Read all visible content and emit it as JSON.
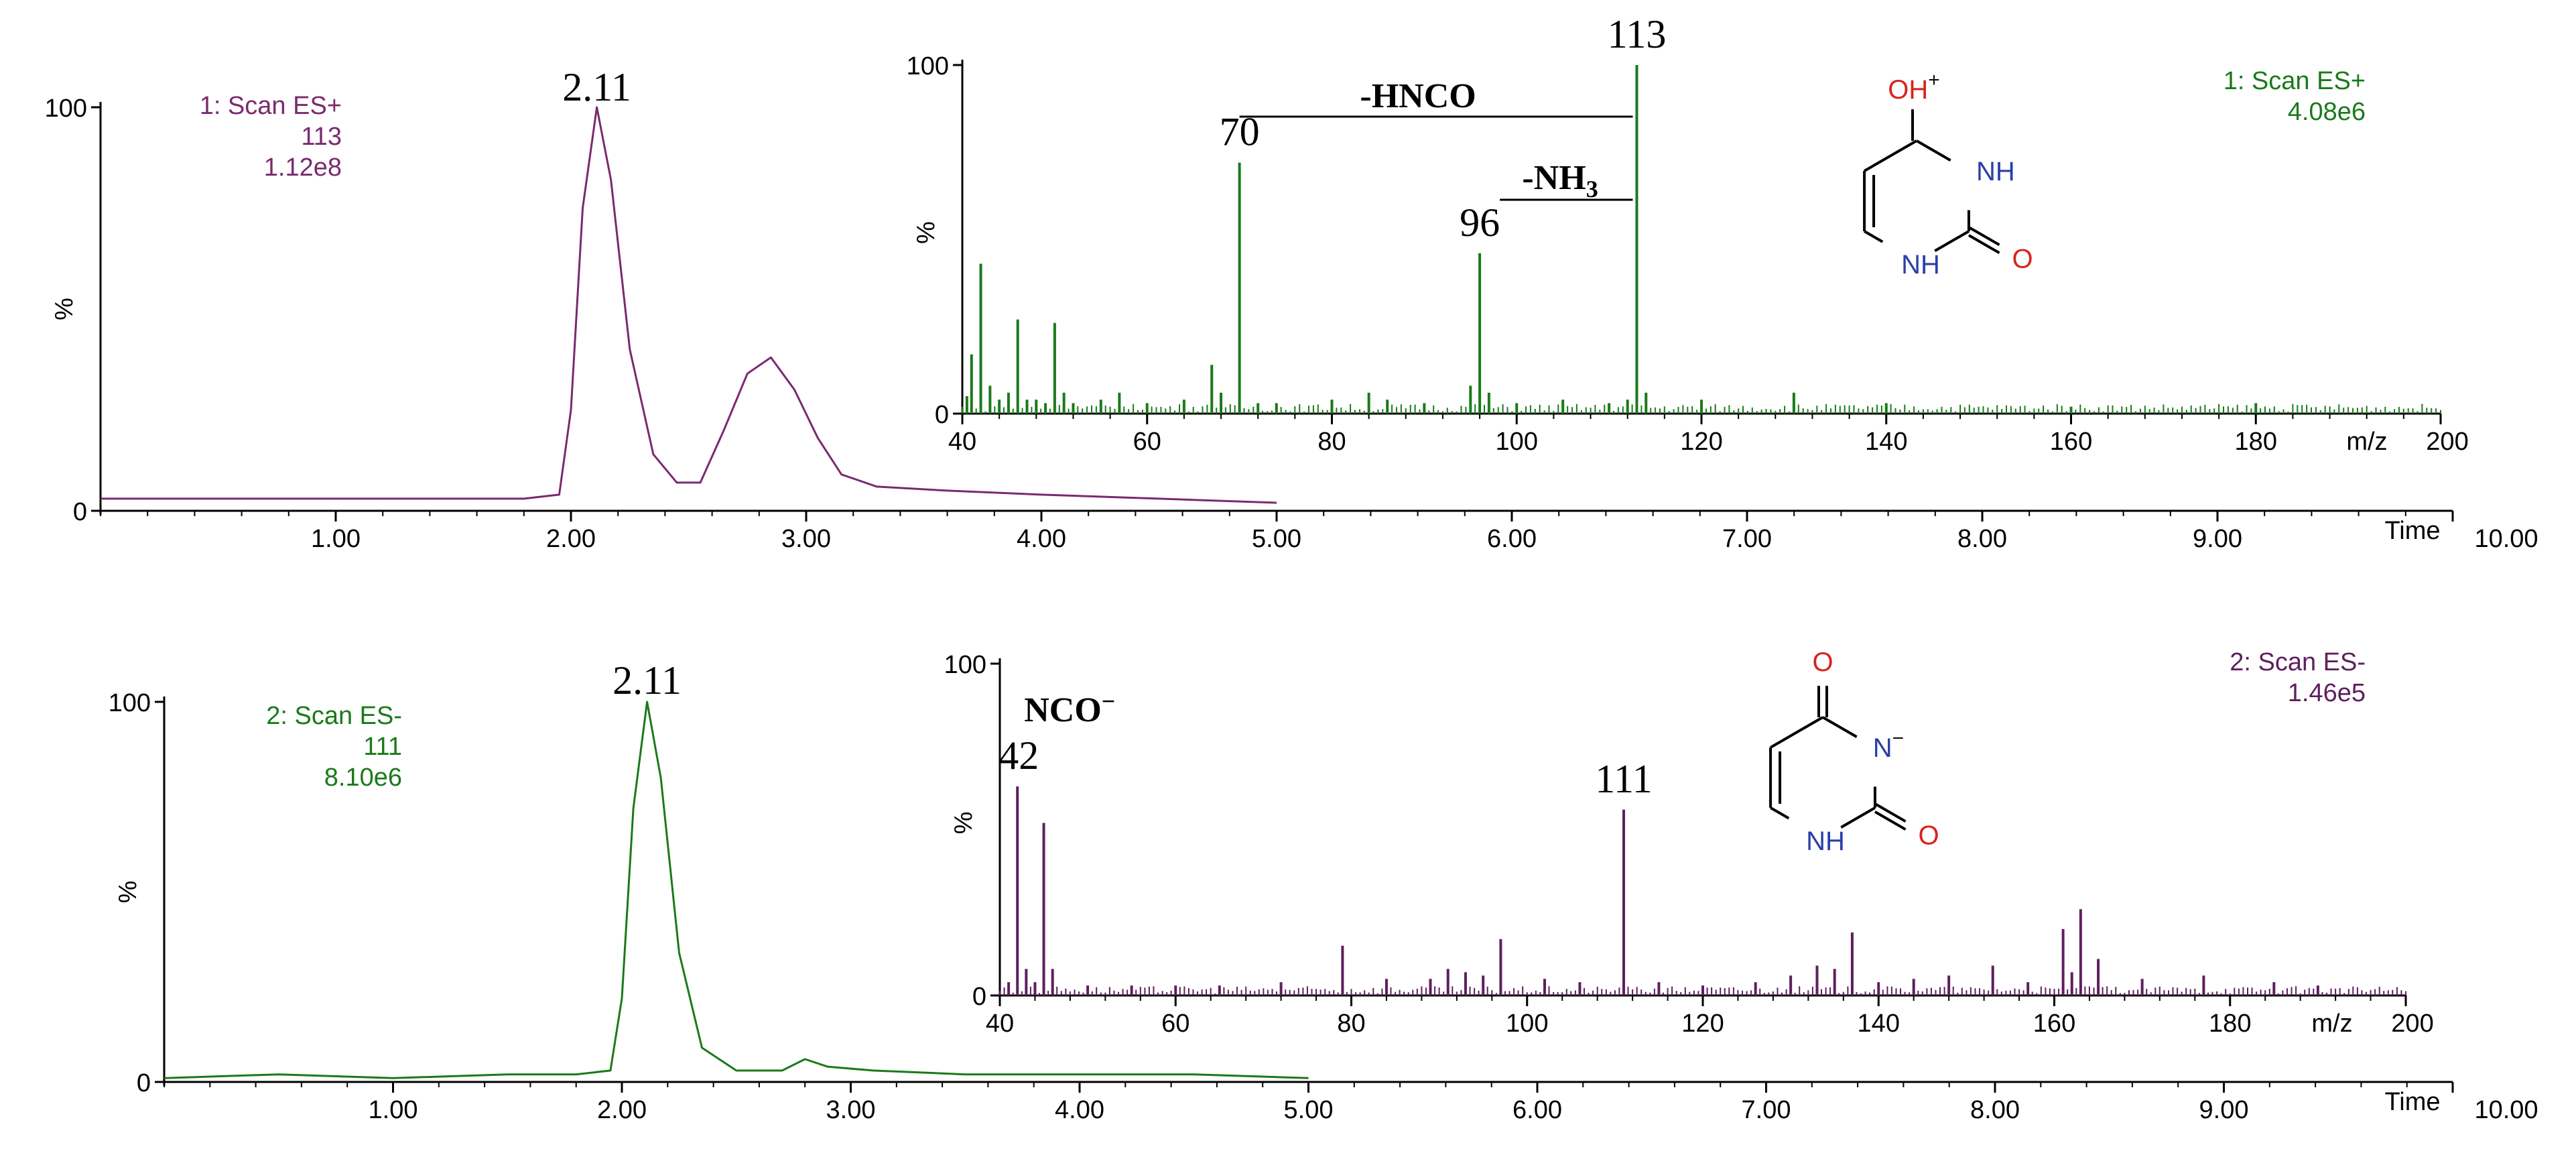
{
  "chart_data": [
    {
      "type": "line",
      "panel": "top chromatogram",
      "xlabel": "Time",
      "ylabel": "%",
      "xlim": [
        0,
        10
      ],
      "ylim": [
        0,
        100
      ],
      "x_ticks": [
        "1.00",
        "2.00",
        "3.00",
        "4.00",
        "5.00",
        "6.00",
        "7.00",
        "8.00",
        "9.00",
        "10.00"
      ],
      "x_tick_values": [
        1,
        2,
        3,
        4,
        5,
        6,
        7,
        8,
        9,
        10
      ],
      "y_ticks": [
        "0",
        "100"
      ],
      "y_tick_values": [
        0,
        100
      ],
      "info_lines": [
        "1: Scan ES+",
        "113",
        "1.12e8"
      ],
      "peak_label": "2.11",
      "peak_label_x": 2.11,
      "color": "#7a2a6e",
      "series": [
        {
          "x": [
            0.0,
            0.5,
            1.0,
            1.5,
            1.8,
            1.95,
            2.0,
            2.05,
            2.11,
            2.17,
            2.25,
            2.35,
            2.45,
            2.55,
            2.65,
            2.75,
            2.85,
            2.95,
            3.05,
            3.15,
            3.3,
            3.6,
            4.0,
            4.5,
            5.0
          ],
          "y": [
            3,
            3,
            3,
            3,
            3,
            4,
            25,
            75,
            100,
            82,
            40,
            14,
            7,
            7,
            20,
            34,
            38,
            30,
            18,
            9,
            6,
            5,
            4,
            3,
            2
          ]
        }
      ]
    },
    {
      "type": "bar",
      "panel": "top inset mass spectrum",
      "xlabel": "m/z",
      "ylabel": "%",
      "xlim": [
        40,
        200
      ],
      "ylim": [
        0,
        100
      ],
      "x_ticks": [
        "40",
        "60",
        "80",
        "100",
        "120",
        "140",
        "160",
        "180",
        "200"
      ],
      "x_tick_values": [
        40,
        60,
        80,
        100,
        120,
        140,
        160,
        180,
        200
      ],
      "y_ticks": [
        "0",
        "100"
      ],
      "y_tick_values": [
        0,
        100
      ],
      "info_lines": [
        "1: Scan ES+",
        "4.08e6"
      ],
      "color": "#1a7a1a",
      "peaks": {
        "mz": [
          40.5,
          41,
          42,
          43,
          44,
          45,
          46,
          47,
          48,
          49,
          50,
          51,
          52,
          55,
          57,
          60,
          64,
          67,
          68,
          70,
          72,
          74,
          80,
          84,
          86,
          90,
          95,
          96,
          97,
          100,
          105,
          110,
          112,
          113,
          114,
          120,
          130,
          140,
          160,
          180
        ],
        "intensity": [
          5,
          17,
          43,
          8,
          4,
          6,
          27,
          4,
          4,
          3,
          26,
          6,
          3,
          4,
          6,
          3,
          4,
          14,
          6,
          72,
          3,
          3,
          4,
          6,
          4,
          3,
          8,
          46,
          6,
          3,
          4,
          3,
          4,
          100,
          6,
          4,
          6,
          3,
          2,
          3
        ]
      },
      "peak_labels": [
        {
          "text": "70",
          "mz": 70
        },
        {
          "text": "96",
          "mz": 96
        },
        {
          "text": "113",
          "mz": 113
        }
      ],
      "annotations": [
        "-HNCO",
        "-NH3"
      ]
    },
    {
      "type": "line",
      "panel": "bottom chromatogram",
      "xlabel": "Time",
      "ylabel": "%",
      "xlim": [
        0,
        10
      ],
      "ylim": [
        0,
        100
      ],
      "x_ticks": [
        "1.00",
        "2.00",
        "3.00",
        "4.00",
        "5.00",
        "6.00",
        "7.00",
        "8.00",
        "9.00",
        "10.00"
      ],
      "x_tick_values": [
        1,
        2,
        3,
        4,
        5,
        6,
        7,
        8,
        9,
        10
      ],
      "y_ticks": [
        "0",
        "100"
      ],
      "y_tick_values": [
        0,
        100
      ],
      "info_lines": [
        "2: Scan ES-",
        "111",
        "8.10e6"
      ],
      "peak_label": "2.11",
      "peak_label_x": 2.11,
      "color": "#1a7a1a",
      "series": [
        {
          "x": [
            0.0,
            0.5,
            1.0,
            1.5,
            1.8,
            1.95,
            2.0,
            2.05,
            2.11,
            2.17,
            2.25,
            2.35,
            2.5,
            2.7,
            2.8,
            2.9,
            3.1,
            3.5,
            4.0,
            4.5,
            5.0
          ],
          "y": [
            1,
            2,
            1,
            2,
            2,
            3,
            22,
            72,
            100,
            80,
            34,
            9,
            3,
            3,
            6,
            4,
            3,
            2,
            2,
            2,
            1
          ]
        }
      ]
    },
    {
      "type": "bar",
      "panel": "bottom inset mass spectrum",
      "xlabel": "m/z",
      "ylabel": "%",
      "xlim": [
        40,
        200
      ],
      "ylim": [
        0,
        100
      ],
      "x_ticks": [
        "40",
        "60",
        "80",
        "100",
        "120",
        "140",
        "160",
        "180",
        "200"
      ],
      "x_tick_values": [
        40,
        60,
        80,
        100,
        120,
        140,
        160,
        180,
        200
      ],
      "y_ticks": [
        "0",
        "100"
      ],
      "y_tick_values": [
        0,
        100
      ],
      "info_lines": [
        "2: Scan ES-",
        "1.46e5"
      ],
      "color": "#5e1f5e",
      "peaks": {
        "mz": [
          41,
          42,
          43,
          44,
          45,
          46,
          50,
          55,
          60,
          65,
          72,
          79,
          84,
          89,
          91,
          93,
          95,
          97,
          102,
          106,
          111,
          115,
          120,
          126,
          130,
          133,
          135,
          137,
          140,
          144,
          148,
          153,
          157,
          161,
          162,
          163,
          165,
          170,
          177,
          185,
          190
        ],
        "intensity": [
          4,
          63,
          8,
          4,
          52,
          8,
          3,
          3,
          3,
          3,
          4,
          15,
          5,
          5,
          8,
          7,
          6,
          17,
          5,
          4,
          56,
          4,
          3,
          4,
          6,
          9,
          8,
          19,
          4,
          5,
          6,
          9,
          4,
          20,
          7,
          26,
          11,
          5,
          6,
          4,
          3
        ]
      },
      "peak_labels": [
        {
          "text": "42",
          "mz": 42
        },
        {
          "text": "111",
          "mz": 111
        }
      ],
      "annotations": [
        "NCO-"
      ]
    }
  ],
  "structures": {
    "top": {
      "oh_label": "OH",
      "charge": "+",
      "nh_upper": "NH",
      "nh_lower": "NH",
      "o_label": "O"
    },
    "bottom": {
      "o_top": "O",
      "n_label": "N",
      "charge": "−",
      "nh_lower": "NH",
      "o_label": "O"
    }
  },
  "colors": {
    "green": "#1a7a1a",
    "purple": "#7a2a6e",
    "dark_purple": "#5e1f5e",
    "red": "#d8241c",
    "blue": "#2a3fa8",
    "black": "#111111"
  }
}
